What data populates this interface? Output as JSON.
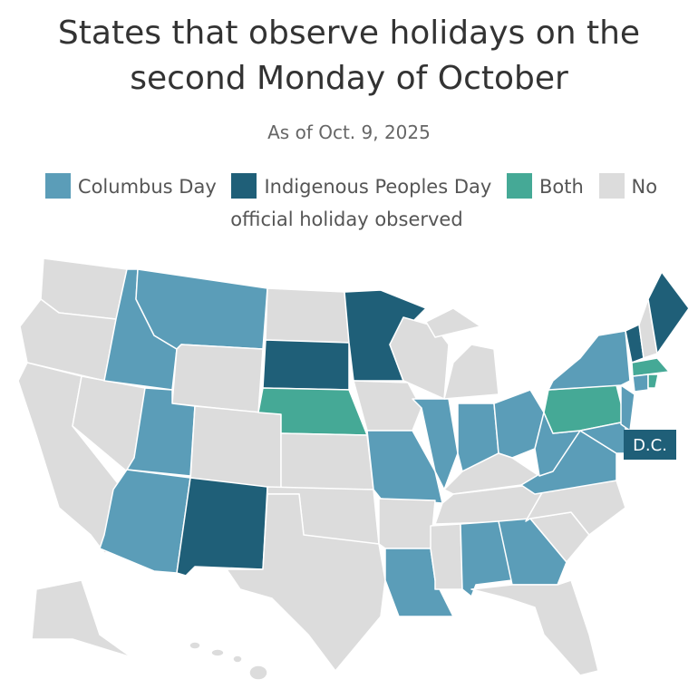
{
  "title": "States that observe holidays on the second Monday of October",
  "subtitle": "As of Oct. 9, 2025",
  "legend": [
    {
      "label": "Columbus Day",
      "color": "#5b9db8"
    },
    {
      "label": "Indigenous Peoples Day",
      "color": "#1f5f78"
    },
    {
      "label": "Both",
      "color": "#45a996"
    },
    {
      "label": "No official holiday observed",
      "color": "#dcdcdc"
    }
  ],
  "map": {
    "dc_label": "D.C."
  }
}
